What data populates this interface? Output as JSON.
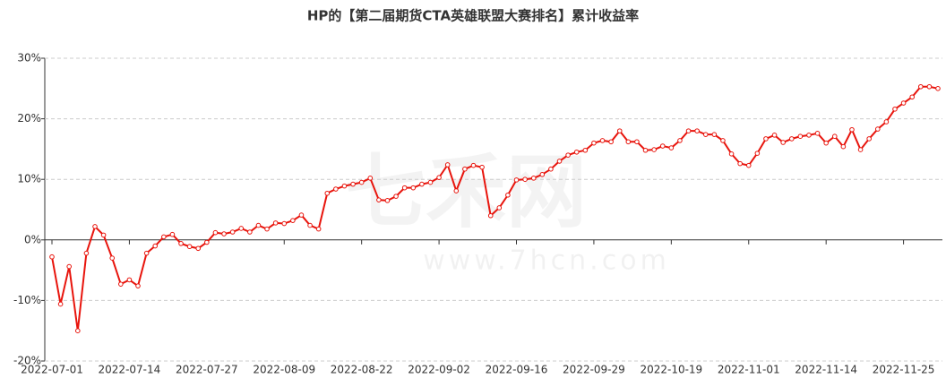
{
  "chart_data": {
    "type": "line",
    "title": "HP的【第二届期货CTA英雄联盟大赛排名】累计收益率",
    "watermark": "七禾网",
    "watermark_url": "www.7hcn.com",
    "categories": [
      "2022-07-01",
      null,
      null,
      null,
      null,
      null,
      null,
      null,
      null,
      "2022-07-14",
      null,
      null,
      null,
      null,
      null,
      null,
      null,
      null,
      "2022-07-27",
      null,
      null,
      null,
      null,
      null,
      null,
      null,
      null,
      "2022-08-09",
      null,
      null,
      null,
      null,
      null,
      null,
      null,
      null,
      "2022-08-22",
      null,
      null,
      null,
      null,
      null,
      null,
      null,
      null,
      "2022-09-02",
      null,
      null,
      null,
      null,
      null,
      null,
      null,
      null,
      "2022-09-16",
      null,
      null,
      null,
      null,
      null,
      null,
      null,
      null,
      "2022-09-29",
      null,
      null,
      null,
      null,
      null,
      null,
      null,
      null,
      "2022-10-19",
      null,
      null,
      null,
      null,
      null,
      null,
      null,
      null,
      "2022-11-01",
      null,
      null,
      null,
      null,
      null,
      null,
      null,
      null,
      "2022-11-14",
      null,
      null,
      null,
      null,
      null,
      null,
      null,
      null,
      "2022-11-25",
      null,
      null,
      null,
      null
    ],
    "series": [
      {
        "color": "#e8140c",
        "values": [
          -2.8,
          -10.6,
          -4.4,
          -15.0,
          -2.2,
          2.2,
          0.8,
          -3.0,
          -7.3,
          -6.6,
          -7.6,
          -2.2,
          -1.0,
          0.5,
          0.9,
          -0.6,
          -1.1,
          -1.4,
          -0.4,
          1.2,
          1.0,
          1.3,
          1.9,
          1.3,
          2.4,
          1.8,
          2.8,
          2.7,
          3.2,
          4.1,
          2.4,
          1.8,
          7.7,
          8.4,
          8.9,
          9.2,
          9.5,
          10.2,
          6.6,
          6.5,
          7.2,
          8.6,
          8.6,
          9.2,
          9.5,
          10.3,
          12.4,
          8.1,
          11.7,
          12.3,
          12.0,
          4.0,
          5.3,
          7.4,
          9.9,
          10.0,
          10.2,
          10.8,
          11.7,
          13.0,
          14.0,
          14.5,
          14.8,
          16.0,
          16.4,
          16.2,
          18.0,
          16.2,
          16.2,
          14.8,
          14.9,
          15.5,
          15.2,
          16.4,
          18.0,
          18.0,
          17.4,
          17.4,
          16.4,
          14.2,
          12.6,
          12.3,
          14.3,
          16.7,
          17.3,
          16.1,
          16.7,
          17.1,
          17.3,
          17.6,
          16.0,
          17.1,
          15.4,
          18.2,
          14.9,
          16.7,
          18.3,
          19.5,
          21.6,
          22.6,
          23.6,
          25.3,
          25.3,
          25.0
        ]
      }
    ],
    "ylim": [
      -20,
      30
    ],
    "yticks": [
      {
        "value": -20,
        "label": "-20%"
      },
      {
        "value": -10,
        "label": "-10%"
      },
      {
        "value": 0,
        "label": "0%"
      },
      {
        "value": 10,
        "label": "10%"
      },
      {
        "value": 20,
        "label": "20%"
      },
      {
        "value": 30,
        "label": "30%"
      }
    ],
    "grid": true
  }
}
